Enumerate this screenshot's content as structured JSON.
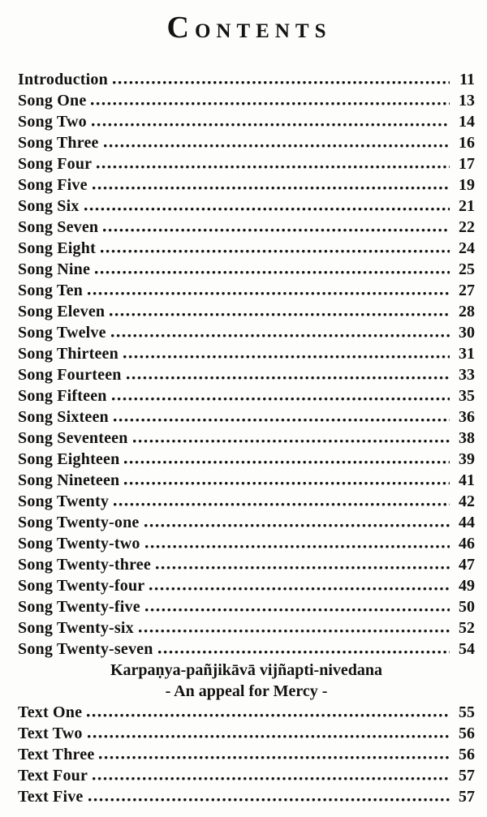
{
  "page": {
    "title": "Contents"
  },
  "toc": {
    "main_entries": [
      {
        "label": "Introduction",
        "page": "11"
      },
      {
        "label": "Song One",
        "page": "13"
      },
      {
        "label": "Song Two",
        "page": "14"
      },
      {
        "label": "Song Three",
        "page": "16"
      },
      {
        "label": "Song Four",
        "page": "17"
      },
      {
        "label": "Song Five",
        "page": "19"
      },
      {
        "label": "Song Six",
        "page": "21"
      },
      {
        "label": "Song Seven",
        "page": "22"
      },
      {
        "label": "Song Eight",
        "page": "24"
      },
      {
        "label": "Song Nine",
        "page": "25"
      },
      {
        "label": "Song Ten",
        "page": "27"
      },
      {
        "label": "Song Eleven",
        "page": "28"
      },
      {
        "label": "Song Twelve",
        "page": "30"
      },
      {
        "label": "Song Thirteen",
        "page": "31"
      },
      {
        "label": "Song Fourteen",
        "page": "33"
      },
      {
        "label": "Song Fifteen",
        "page": "35"
      },
      {
        "label": "Song Sixteen",
        "page": "36"
      },
      {
        "label": "Song Seventeen",
        "page": "38"
      },
      {
        "label": "Song Eighteen",
        "page": "39"
      },
      {
        "label": "Song Nineteen",
        "page": "41"
      },
      {
        "label": "Song Twenty",
        "page": "42"
      },
      {
        "label": "Song Twenty-one",
        "page": "44"
      },
      {
        "label": "Song Twenty-two",
        "page": "46"
      },
      {
        "label": "Song Twenty-three",
        "page": "47"
      },
      {
        "label": "Song Twenty-four",
        "page": "49"
      },
      {
        "label": "Song Twenty-five",
        "page": "50"
      },
      {
        "label": "Song Twenty-six",
        "page": "52"
      },
      {
        "label": "Song Twenty-seven",
        "page": "54"
      }
    ],
    "section_heading": {
      "line1": "Karpaṇya-pañjikāvā vijñapti-nivedana",
      "line2": "- An appeal for Mercy -"
    },
    "text_entries": [
      {
        "label": "Text One",
        "page": "55"
      },
      {
        "label": "Text Two",
        "page": "56"
      },
      {
        "label": "Text Three",
        "page": "56"
      },
      {
        "label": "Text Four",
        "page": "57"
      },
      {
        "label": "Text Five",
        "page": "57"
      }
    ]
  },
  "colors": {
    "text": "#141312",
    "background": "#fdfdfc"
  }
}
